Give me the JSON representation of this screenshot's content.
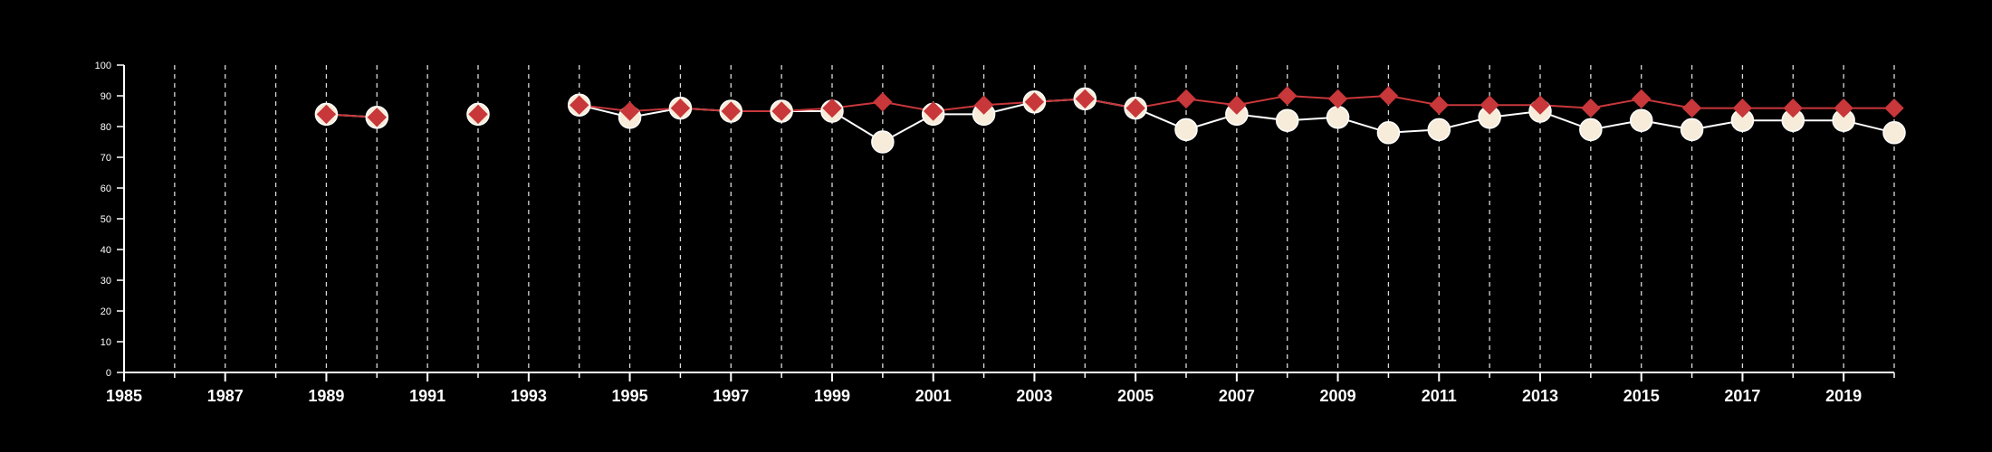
{
  "chart_data": {
    "type": "line",
    "title": "",
    "xlabel": "",
    "ylabel": "",
    "xlim": [
      1985,
      2020
    ],
    "ylim": [
      0,
      100
    ],
    "x_ticks": [
      "1985",
      "1987",
      "1989",
      "1991",
      "1993",
      "1995",
      "1997",
      "1999",
      "2001",
      "2003",
      "2005",
      "2007",
      "2009",
      "2011",
      "2013",
      "2015",
      "2017",
      "2019"
    ],
    "y_ticks": [
      "0",
      "10",
      "20",
      "30",
      "40",
      "50",
      "60",
      "70",
      "80",
      "90",
      "100"
    ],
    "vertical_grid_dashed": true,
    "background": "#000000",
    "series": [
      {
        "marker": "circle",
        "color": "#f7ecd9",
        "line_color": "#ffffff",
        "x": [
          1989,
          1990,
          1992,
          1994,
          1995,
          1996,
          1997,
          1998,
          1999,
          2000,
          2001,
          2002,
          2003,
          2004,
          2005,
          2006,
          2007,
          2008,
          2009,
          2010,
          2011,
          2012,
          2013,
          2014,
          2015,
          2016,
          2017,
          2018,
          2019,
          2020
        ],
        "values": [
          84,
          83,
          84,
          87,
          83,
          86,
          85,
          85,
          85,
          75,
          84,
          84,
          88,
          89,
          86,
          79,
          84,
          82,
          83,
          78,
          79,
          83,
          85,
          79,
          82,
          79,
          82,
          82,
          82,
          78
        ]
      },
      {
        "marker": "diamond",
        "color": "#c8373a",
        "line_color": "#c8373a",
        "x": [
          1989,
          1990,
          1992,
          1994,
          1995,
          1996,
          1997,
          1998,
          1999,
          2000,
          2001,
          2002,
          2003,
          2004,
          2005,
          2006,
          2007,
          2008,
          2009,
          2010,
          2011,
          2012,
          2013,
          2014,
          2015,
          2016,
          2017,
          2018,
          2019,
          2020
        ],
        "values": [
          84,
          83,
          84,
          87,
          85,
          86,
          85,
          85,
          86,
          88,
          85,
          87,
          88,
          89,
          86,
          89,
          87,
          90,
          89,
          90,
          87,
          87,
          87,
          86,
          89,
          86,
          86,
          86,
          86,
          86
        ]
      }
    ]
  }
}
